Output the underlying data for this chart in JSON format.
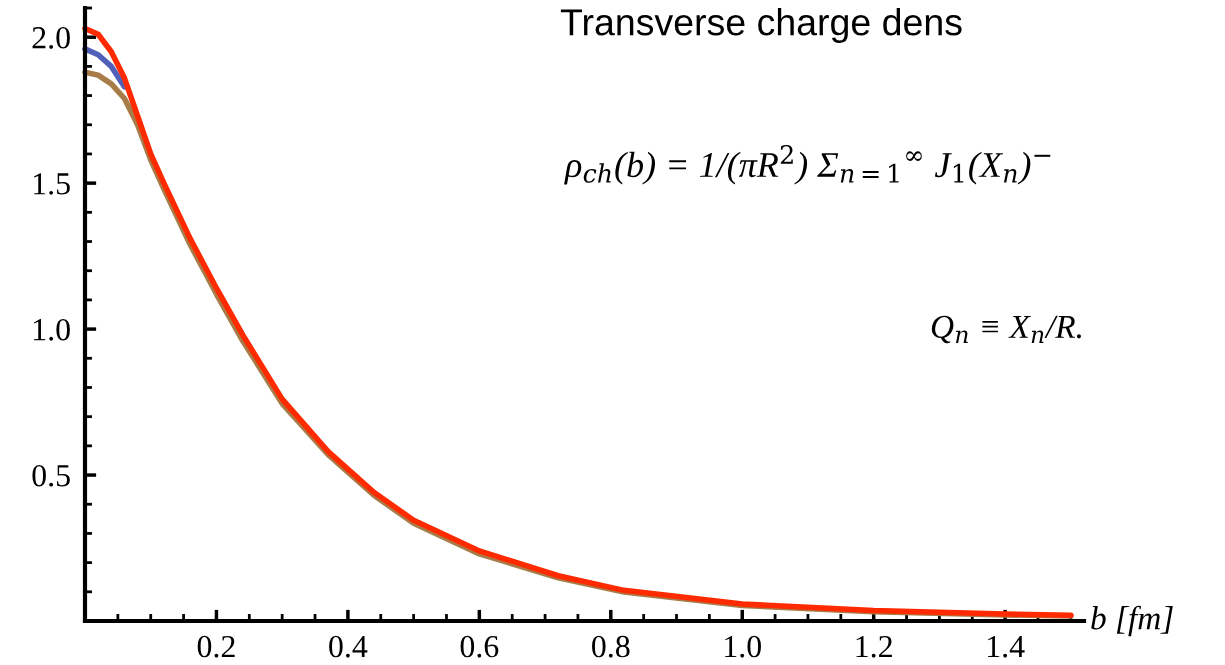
{
  "chart_data": {
    "type": "line",
    "title": "Transverse charge dens",
    "xlabel": "b [fm]",
    "annotations": [
      "ρ$_{ch}$(b) = 1/(πR$^{2}$) Σ$_{n=1}$$^{∞}$ J$_{1}$(X$_{n}$)$^{−}$",
      "Q$_{n}$ ≡ X$_{n}$/R."
    ],
    "x": [
      0,
      0.02,
      0.04,
      0.06,
      0.08,
      0.1,
      0.12,
      0.16,
      0.2,
      0.24,
      0.3,
      0.37,
      0.44,
      0.5,
      0.6,
      0.72,
      0.82,
      1.0,
      1.2,
      1.4,
      1.5
    ],
    "series": [
      {
        "color": "#5060b8",
        "values": [
          1.96,
          1.94,
          1.9,
          1.83,
          null,
          null,
          null,
          null,
          null,
          null,
          null,
          null,
          null,
          null,
          null,
          null,
          null,
          null,
          null,
          null,
          null
        ]
      },
      {
        "color": "#a87c48",
        "values": [
          1.88,
          1.87,
          1.84,
          1.79,
          1.7,
          1.58,
          1.48,
          1.29,
          1.12,
          0.96,
          0.745,
          0.57,
          0.43,
          0.335,
          0.23,
          0.148,
          0.099,
          0.053,
          0.032,
          0.021,
          0.017
        ]
      },
      {
        "color": "#ff2a00",
        "values": [
          2.03,
          2.01,
          1.95,
          1.86,
          1.73,
          1.6,
          1.5,
          1.31,
          1.14,
          0.98,
          0.76,
          0.58,
          0.44,
          0.345,
          0.24,
          0.155,
          0.105,
          0.058,
          0.036,
          0.024,
          0.02
        ]
      }
    ],
    "xlim": [
      0,
      1.52
    ],
    "ylim": [
      0,
      2.1
    ],
    "xticks": [
      0.2,
      0.4,
      0.6,
      0.8,
      {
        "value": 1.0,
        "label": "1.0"
      },
      1.2,
      1.4
    ],
    "yticks": [
      0.5,
      {
        "value": 1.0,
        "label": "1.0"
      },
      1.5,
      {
        "value": 2.0,
        "label": "2.0"
      }
    ],
    "grid": false,
    "legend": false
  }
}
